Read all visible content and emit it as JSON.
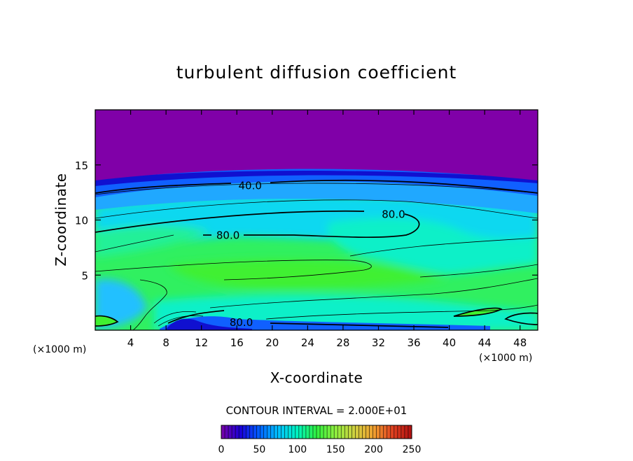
{
  "chart_data": {
    "type": "heatmap",
    "title": "turbulent diffusion coefficient",
    "xlabel": "X-coordinate",
    "ylabel": "Z-coordinate",
    "x_unit_left": "(×1000 m)",
    "x_unit_right": "(×1000 m)",
    "xlim": [
      0,
      50
    ],
    "ylim": [
      0,
      20
    ],
    "xticks": [
      4,
      8,
      12,
      16,
      20,
      24,
      28,
      32,
      36,
      40,
      44,
      48
    ],
    "yticks": [
      5,
      10,
      15
    ],
    "contour_labels": [
      {
        "text": "40.0",
        "x": 17.5,
        "y": 13.1
      },
      {
        "text": "80.0",
        "x": 33.7,
        "y": 10.5
      },
      {
        "text": "80.0",
        "x": 15,
        "y": 8.6
      },
      {
        "text": "80.0",
        "x": 16.5,
        "y": 0.7
      }
    ],
    "contour_interval_text": "CONTOUR INTERVAL = 2.000E+01",
    "colorbar": {
      "min": 0,
      "max": 250,
      "ticks": [
        0,
        50,
        100,
        150,
        200,
        250
      ],
      "colors": [
        "#7a00a8",
        "#1a00d8",
        "#0060ff",
        "#00c0ff",
        "#00f5c0",
        "#30f040",
        "#90f040",
        "#d0d040",
        "#f0a030",
        "#e04020",
        "#b01010"
      ]
    },
    "fill_colors": {
      "purple": "#8000a8",
      "deep_blue": "#1010d0",
      "blue": "#1060ff",
      "light_blue": "#20a8ff",
      "cyan": "#10d8f0",
      "aqua": "#10f0c8",
      "sea_green": "#20f098",
      "green": "#30f060",
      "bright_green": "#40f030"
    }
  }
}
